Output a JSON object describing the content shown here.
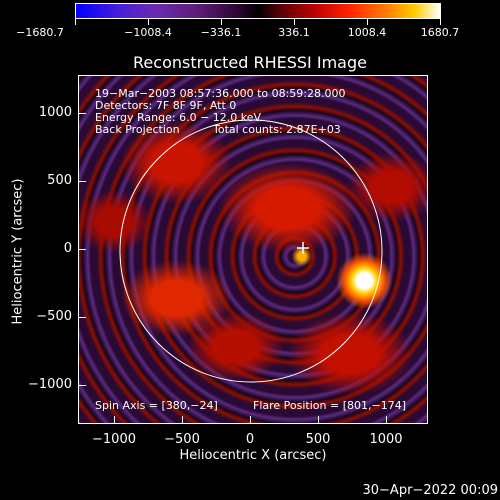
{
  "colorbar": {
    "labels": [
      "−1680.7",
      "−1008.4",
      "−336.1",
      "336.1",
      "1008.4",
      "1680.7"
    ],
    "colors": [
      "#0000ff",
      "#6a2bb0",
      "#000000",
      "#b80000",
      "#ff7a00",
      "#ffcc00",
      "#ffffff"
    ]
  },
  "title": "Reconstructed RHESSI Image",
  "info": {
    "time": "19−Mar−2003 08:57:36.000 to 08:59:28.000",
    "detectors": "Detectors: 7F 8F 9F, Att 0",
    "energy": "Energy Range: 6.0 − 12.0 keV",
    "method": "Back Projection",
    "counts": "Total counts: 2.87E+03",
    "spin_axis": "Spin Axis = [380,−24]",
    "flare_position": "Flare Position = [801,−174]"
  },
  "axes": {
    "xlabel": "Heliocentric X (arcsec)",
    "ylabel": "Heliocentric Y (arcsec)",
    "xticks": [
      "−1000",
      "−500",
      "0",
      "500",
      "1000"
    ],
    "yticks": [
      "1000",
      "500",
      "0",
      "−500",
      "−1000"
    ]
  },
  "footer": "30−Apr−2022 00:09"
}
